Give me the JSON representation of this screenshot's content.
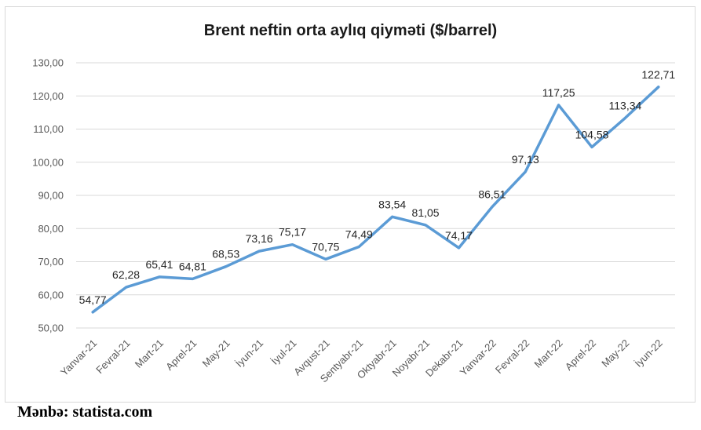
{
  "chart_data": {
    "type": "line",
    "title": "Brent neftin orta aylıq qiymәti ($/barrel)",
    "categories": [
      "Yanvar-21",
      "Fevral-21",
      "Mart-21",
      "Aprel-21",
      "May-21",
      "İyun-21",
      "İyul-21",
      "Avqust-21",
      "Sentyabr-21",
      "Oktyabr-21",
      "Noyabr-21",
      "Dekabr-21",
      "Yanvar-22",
      "Fevral-22",
      "Mart-22",
      "Aprel-22",
      "May-22",
      "İyun-22"
    ],
    "values": [
      54.77,
      62.28,
      65.41,
      64.81,
      68.53,
      73.16,
      75.17,
      70.75,
      74.49,
      83.54,
      81.05,
      74.17,
      86.51,
      97.13,
      117.25,
      104.58,
      113.34,
      122.71
    ],
    "data_labels": [
      "54,77",
      "62,28",
      "65,41",
      "64,81",
      "68,53",
      "73,16",
      "75,17",
      "70,75",
      "74,49",
      "83,54",
      "81,05",
      "74,17",
      "86,51",
      "97,13",
      "117,25",
      "104,58",
      "113,34",
      "122,71"
    ],
    "ylim": [
      50,
      130
    ],
    "y_ticks": [
      "50,00",
      "60,00",
      "70,00",
      "80,00",
      "90,00",
      "100,00",
      "110,00",
      "120,00",
      "130,00"
    ],
    "grid": true,
    "line_color": "#5b9bd5",
    "legend": "none"
  },
  "source": "Mәnbә: statista.com"
}
